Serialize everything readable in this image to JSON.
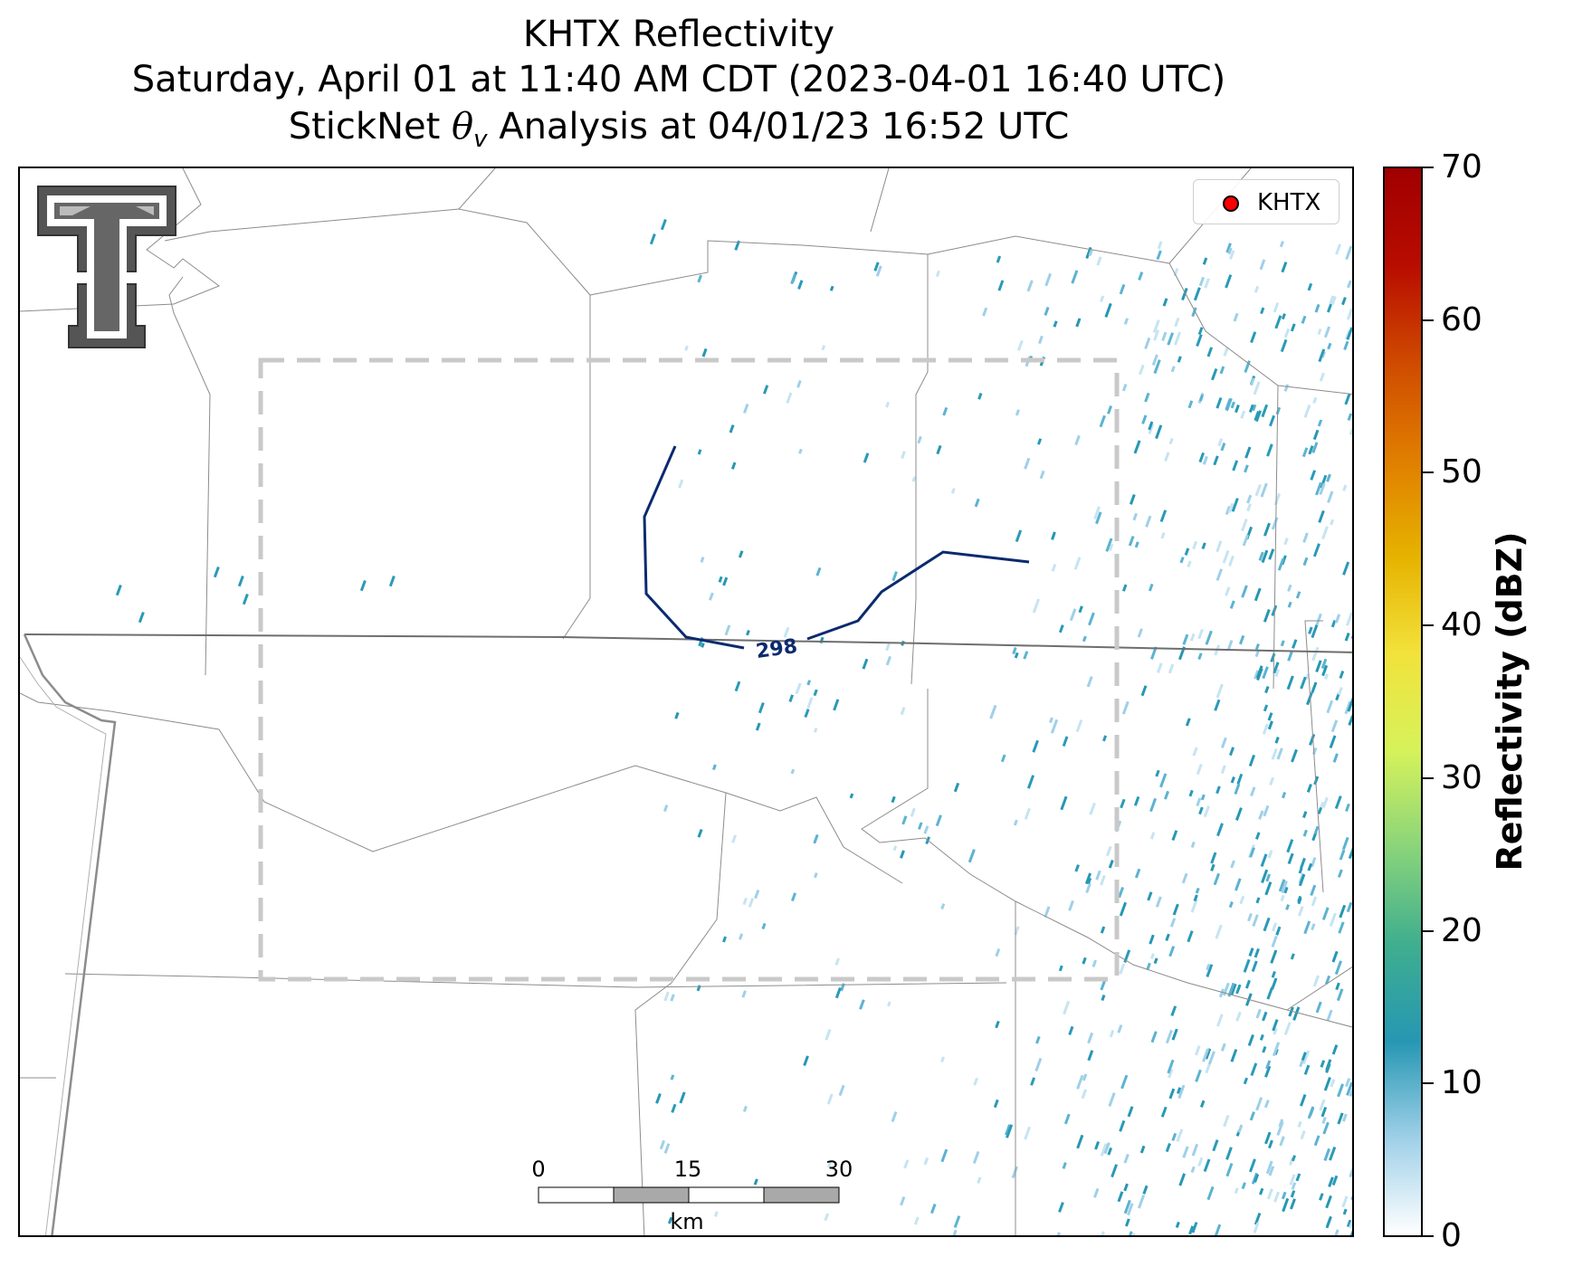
{
  "title": {
    "line1": "KHTX Reflectivity",
    "line2": "Saturday, April 01 at 11:40 AM CDT (2023-04-01 16:40 UTC)",
    "line3_prefix": "StickNet ",
    "line3_symbol": "θ",
    "line3_subscript": "v",
    "line3_suffix": " Analysis at 04/01/23 16:52 UTC"
  },
  "legend": {
    "label": "KHTX",
    "marker_color": "#ff0000"
  },
  "contour": {
    "label": "298",
    "color": "#0b2a6e"
  },
  "colorbar": {
    "title": "Reflectivity (dBZ)",
    "ticks": [
      "0",
      "10",
      "20",
      "30",
      "40",
      "50",
      "60",
      "70"
    ],
    "min": 0,
    "max": 70,
    "colormap": [
      "#ffffff",
      "#9fd0e8",
      "#2697b3",
      "#3fae8f",
      "#8ad47a",
      "#d6f25a",
      "#f2e23b",
      "#e6b200",
      "#e07e00",
      "#cf4a00",
      "#b80c00",
      "#a00000"
    ]
  },
  "scalebar": {
    "labels": [
      "0",
      "15",
      "30"
    ],
    "unit": "km",
    "fill_colors": [
      "#ffffff",
      "#a9a9a9"
    ]
  },
  "logo": {
    "name": "texas-tech-double-t-logo",
    "color": "#555555"
  },
  "colors": {
    "boundary": "#8c8c8c",
    "state_line": "#6e6e6e",
    "domain_box": "#c9c9c9",
    "reflectivity": "#2a9ab8"
  }
}
